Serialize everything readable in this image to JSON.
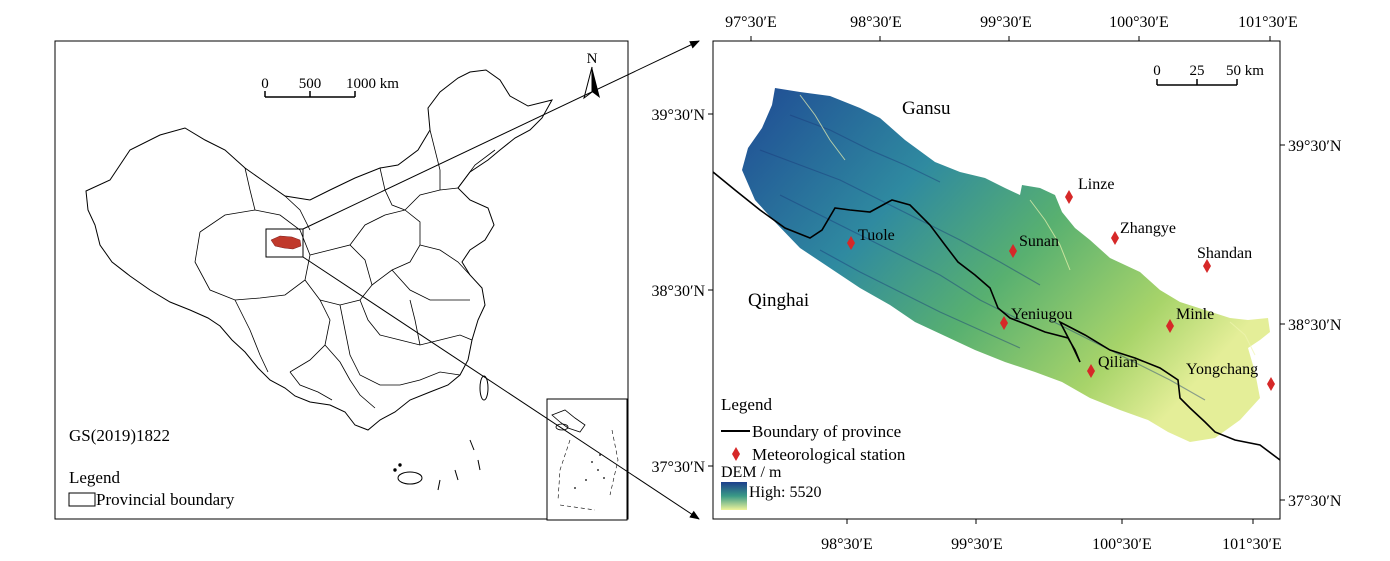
{
  "left_map": {
    "north_label": "N",
    "scale_ticks": [
      "0",
      "500",
      "1000 km"
    ],
    "code_label": "GS(2019)1822",
    "legend_title": "Legend",
    "legend_item": "Provincial boundary"
  },
  "right_map": {
    "top_ticks": [
      "97°30′E",
      "98°30′E",
      "99°30′E",
      "100°30′E",
      "101°30′E"
    ],
    "bottom_ticks": [
      "98°30′E",
      "99°30′E",
      "100°30′E",
      "101°30′E"
    ],
    "left_ticks": [
      "39°30′N",
      "38°30′N",
      "37°30′N"
    ],
    "right_ticks": [
      "39°30′N",
      "38°30′N",
      "37°30′N"
    ],
    "scale_ticks": [
      "0",
      "25",
      "50 km"
    ],
    "region_labels": {
      "gansu": "Gansu",
      "qinghai": "Qinghai"
    },
    "stations": [
      {
        "name": "Linze"
      },
      {
        "name": "Zhangye"
      },
      {
        "name": "Shandan"
      },
      {
        "name": "Sunan"
      },
      {
        "name": "Tuole"
      },
      {
        "name": "Minle"
      },
      {
        "name": "Yeniugou"
      },
      {
        "name": "Qilian"
      },
      {
        "name": "Yongchang"
      }
    ],
    "legend": {
      "title": "Legend",
      "boundary": "Boundary of province",
      "station": "Meteorological station",
      "dem_title": "DEM / m",
      "dem_high": "High: 5520"
    },
    "colors": {
      "station": "#d62828",
      "dem_high": "#1c3f8c",
      "dem_mid": "#4aa36a",
      "dem_low": "#e9f29a"
    }
  }
}
